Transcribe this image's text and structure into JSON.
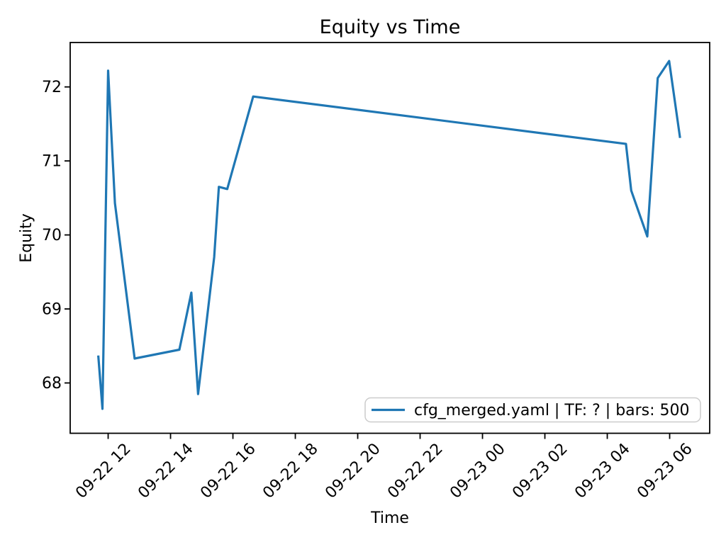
{
  "chart_data": {
    "type": "line",
    "title": "Equity vs Time",
    "xlabel": "Time",
    "ylabel": "Equity",
    "grid": false,
    "background_color": "#ffffff",
    "axis_color": "#000000",
    "legend": {
      "position": "lower right",
      "entries": [
        {
          "label": "cfg_merged.yaml | TF: ? | bars: 500",
          "color": "#1f77b4"
        }
      ]
    },
    "x_ticklabels": [
      "09-22 12",
      "09-22 14",
      "09-22 16",
      "09-22 18",
      "09-22 20",
      "09-22 22",
      "09-23 00",
      "09-23 02",
      "09-23 04",
      "09-23 06"
    ],
    "x_ticklabel_rotation_deg": 45,
    "y_ticks": [
      68,
      69,
      70,
      71,
      72
    ],
    "ylim": [
      67.32,
      72.6
    ],
    "xlim": [
      "09-22 10:47",
      "09-23 07:17"
    ],
    "series": [
      {
        "name": "cfg_merged.yaml | TF: ? | bars: 500",
        "color": "#1f77b4",
        "points": [
          [
            "09-22 11:41",
            68.37
          ],
          [
            "09-22 11:49",
            67.65
          ],
          [
            "09-22 12:00",
            72.22
          ],
          [
            "09-22 12:13",
            70.43
          ],
          [
            "09-22 12:51",
            68.33
          ],
          [
            "09-22 14:17",
            68.45
          ],
          [
            "09-22 14:40",
            69.22
          ],
          [
            "09-22 14:53",
            67.85
          ],
          [
            "09-22 15:24",
            69.7
          ],
          [
            "09-22 15:33",
            70.65
          ],
          [
            "09-22 15:49",
            70.62
          ],
          [
            "09-22 16:39",
            71.87
          ],
          [
            "09-23 04:36",
            71.23
          ],
          [
            "09-23 04:46",
            70.6
          ],
          [
            "09-23 05:17",
            69.98
          ],
          [
            "09-23 05:37",
            72.12
          ],
          [
            "09-23 05:59",
            72.35
          ],
          [
            "09-23 06:20",
            71.31
          ]
        ]
      }
    ]
  }
}
